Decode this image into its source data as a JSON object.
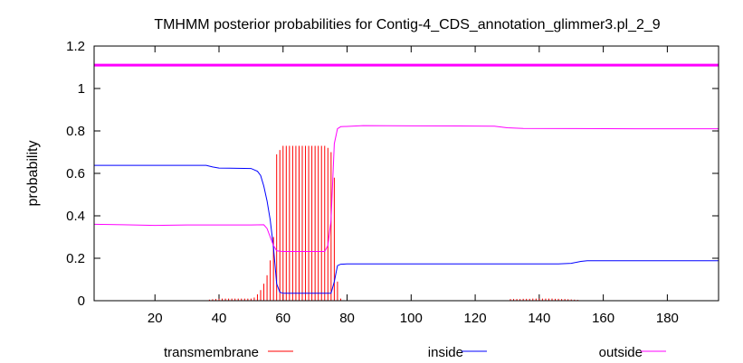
{
  "chart_data": {
    "type": "line",
    "title": "TMHMM posterior probabilities for Contig-4_CDS_annotation_glimmer3.pl_2_9",
    "xlabel": "",
    "ylabel": "probability",
    "xlim": [
      1,
      196
    ],
    "ylim": [
      0,
      1.2
    ],
    "x_ticks": [
      20,
      40,
      60,
      80,
      100,
      120,
      140,
      160,
      180
    ],
    "y_ticks": [
      "0",
      "0.2",
      "0.4",
      "0.6",
      "0.8",
      "1",
      "1.2"
    ],
    "legend_placement": "bottom",
    "reference_line": {
      "y": 1.11,
      "color": "#ff00ff"
    },
    "series": [
      {
        "name": "transmembrane",
        "style": "impulses",
        "color": "#ff0000",
        "points": [
          [
            37,
            0.005
          ],
          [
            38,
            0.007
          ],
          [
            39,
            0.008
          ],
          [
            40,
            0.009
          ],
          [
            41,
            0.01
          ],
          [
            42,
            0.01
          ],
          [
            43,
            0.01
          ],
          [
            44,
            0.01
          ],
          [
            45,
            0.01
          ],
          [
            46,
            0.01
          ],
          [
            47,
            0.01
          ],
          [
            48,
            0.01
          ],
          [
            49,
            0.01
          ],
          [
            50,
            0.01
          ],
          [
            51,
            0.015
          ],
          [
            52,
            0.03
          ],
          [
            53,
            0.05
          ],
          [
            54,
            0.08
          ],
          [
            55,
            0.12
          ],
          [
            56,
            0.19
          ],
          [
            57,
            0.3
          ],
          [
            58,
            0.69
          ],
          [
            59,
            0.71
          ],
          [
            60,
            0.73
          ],
          [
            61,
            0.73
          ],
          [
            62,
            0.73
          ],
          [
            63,
            0.73
          ],
          [
            64,
            0.73
          ],
          [
            65,
            0.73
          ],
          [
            66,
            0.73
          ],
          [
            67,
            0.73
          ],
          [
            68,
            0.73
          ],
          [
            69,
            0.73
          ],
          [
            70,
            0.73
          ],
          [
            71,
            0.73
          ],
          [
            72,
            0.73
          ],
          [
            73,
            0.73
          ],
          [
            74,
            0.72
          ],
          [
            75,
            0.7
          ],
          [
            76,
            0.58
          ],
          [
            77,
            0.09
          ],
          [
            78,
            0.01
          ],
          [
            95,
            0.002
          ],
          [
            100,
            0.002
          ],
          [
            105,
            0.002
          ],
          [
            110,
            0.002
          ],
          [
            115,
            0.002
          ],
          [
            120,
            0.002
          ],
          [
            125,
            0.002
          ],
          [
            131,
            0.008
          ],
          [
            132,
            0.008
          ],
          [
            133,
            0.008
          ],
          [
            134,
            0.008
          ],
          [
            135,
            0.009
          ],
          [
            136,
            0.009
          ],
          [
            137,
            0.009
          ],
          [
            138,
            0.01
          ],
          [
            139,
            0.01
          ],
          [
            140,
            0.01
          ],
          [
            141,
            0.01
          ],
          [
            142,
            0.01
          ],
          [
            143,
            0.01
          ],
          [
            144,
            0.01
          ],
          [
            145,
            0.009
          ],
          [
            146,
            0.009
          ],
          [
            147,
            0.008
          ],
          [
            148,
            0.008
          ],
          [
            149,
            0.007
          ],
          [
            150,
            0.006
          ],
          [
            151,
            0.005
          ],
          [
            152,
            0.004
          ]
        ]
      },
      {
        "name": "inside",
        "style": "line",
        "color": "#0000ff",
        "points": [
          [
            1,
            0.638
          ],
          [
            36,
            0.638
          ],
          [
            38,
            0.63
          ],
          [
            40,
            0.625
          ],
          [
            50,
            0.623
          ],
          [
            52,
            0.61
          ],
          [
            53,
            0.59
          ],
          [
            54,
            0.54
          ],
          [
            55,
            0.47
          ],
          [
            56,
            0.38
          ],
          [
            57,
            0.25
          ],
          [
            58,
            0.08
          ],
          [
            59,
            0.04
          ],
          [
            60,
            0.035
          ],
          [
            75,
            0.035
          ],
          [
            76,
            0.09
          ],
          [
            77,
            0.165
          ],
          [
            78,
            0.172
          ],
          [
            80,
            0.173
          ],
          [
            146,
            0.173
          ],
          [
            150,
            0.176
          ],
          [
            153,
            0.185
          ],
          [
            155,
            0.188
          ],
          [
            196,
            0.188
          ]
        ]
      },
      {
        "name": "outside",
        "style": "line",
        "color": "#ff00ff",
        "points": [
          [
            1,
            0.36
          ],
          [
            10,
            0.358
          ],
          [
            20,
            0.355
          ],
          [
            30,
            0.357
          ],
          [
            40,
            0.357
          ],
          [
            50,
            0.357
          ],
          [
            54,
            0.358
          ],
          [
            55,
            0.34
          ],
          [
            56,
            0.3
          ],
          [
            57,
            0.26
          ],
          [
            58,
            0.235
          ],
          [
            60,
            0.232
          ],
          [
            73,
            0.232
          ],
          [
            74,
            0.26
          ],
          [
            75,
            0.38
          ],
          [
            76,
            0.74
          ],
          [
            77,
            0.81
          ],
          [
            78,
            0.82
          ],
          [
            85,
            0.825
          ],
          [
            100,
            0.824
          ],
          [
            120,
            0.823
          ],
          [
            126,
            0.822
          ],
          [
            130,
            0.815
          ],
          [
            135,
            0.812
          ],
          [
            150,
            0.811
          ],
          [
            170,
            0.81
          ],
          [
            196,
            0.81
          ]
        ]
      }
    ]
  }
}
